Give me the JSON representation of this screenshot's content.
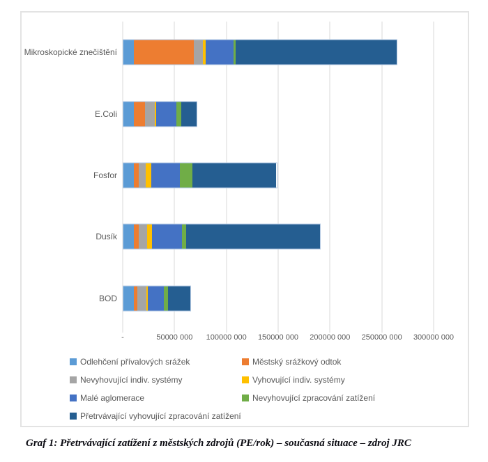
{
  "chart_data": {
    "type": "bar",
    "orientation": "horizontal",
    "stacked": true,
    "grid": true,
    "legend_position": "bottom",
    "categories": [
      "Mikroskopické znečištění",
      "E.Coli",
      "Fosfor",
      "Dusík",
      "BOD"
    ],
    "series": [
      {
        "name": "Odlehčení přívalových srážek",
        "color": "#5B9BD5",
        "values": [
          10000000,
          10000000,
          10000000,
          10000000,
          10000000
        ]
      },
      {
        "name": "Městský srážkový odtok",
        "color": "#ED7D31",
        "values": [
          58000000,
          11000000,
          5000000,
          5000000,
          4000000
        ]
      },
      {
        "name": "Nevyhovující indiv. systémy",
        "color": "#A5A5A5",
        "values": [
          9000000,
          10000000,
          7000000,
          8000000,
          9000000
        ]
      },
      {
        "name": "Vyhovující indiv. systémy",
        "color": "#FFC000",
        "values": [
          3000000,
          1000000,
          5000000,
          5000000,
          1000000
        ]
      },
      {
        "name": "Malé aglomerace",
        "color": "#4472C4",
        "values": [
          27000000,
          20000000,
          28000000,
          29000000,
          16000000
        ]
      },
      {
        "name": "Nevyhovující zpracování zatížení",
        "color": "#70AD47",
        "values": [
          2000000,
          5000000,
          12000000,
          4000000,
          4000000
        ]
      },
      {
        "name": "Přetrvávající vyhovující zpracování zatížení",
        "color": "#255E91",
        "values": [
          156000000,
          15000000,
          82000000,
          130000000,
          22000000
        ]
      }
    ],
    "xlim": [
      0,
      300000000
    ],
    "x_tick_labels": [
      "-",
      "50000 000",
      "100000 000",
      "150000 000",
      "200000 000",
      "250000 000",
      "300000 000"
    ],
    "gridline_color": "#D9D9D9",
    "text_color": "#595959"
  },
  "caption": "Graf 1: Přetrvávající zatížení z městských zdrojů (PE/rok) – současná situace – zdroj JRC"
}
